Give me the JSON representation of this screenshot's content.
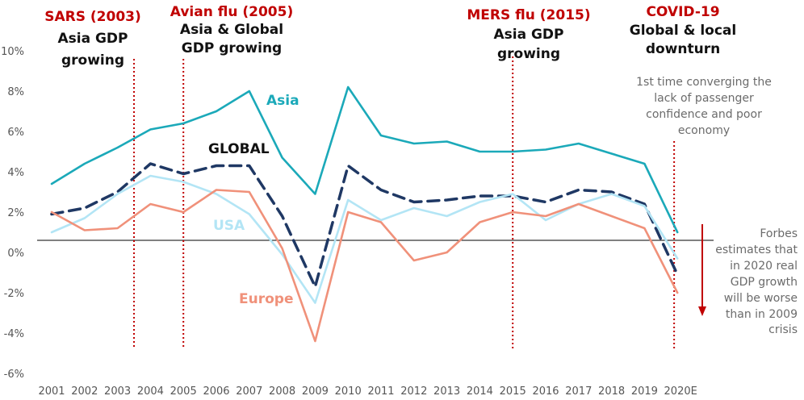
{
  "chart_data": {
    "type": "line",
    "categories": [
      "2001",
      "2002",
      "2003",
      "2004",
      "2005",
      "2006",
      "2007",
      "2008",
      "2009",
      "2010",
      "2011",
      "2012",
      "2013",
      "2014",
      "2015",
      "2016",
      "2017",
      "2018",
      "2019",
      "2020E"
    ],
    "ylim": [
      -6,
      10
    ],
    "yticks": [
      -6,
      -4,
      -2,
      0,
      2,
      4,
      6,
      8,
      10
    ],
    "ytick_labels": [
      "-6%",
      "-4%",
      "-2%",
      "0%",
      "2%",
      "4%",
      "6%",
      "8%",
      "10%"
    ],
    "reference_line_value": 0.6,
    "series": [
      {
        "name": "Asia",
        "color": "#1ba9b9",
        "dash": "solid",
        "values": [
          3.4,
          4.4,
          5.2,
          6.1,
          6.4,
          7.0,
          8.0,
          4.7,
          2.9,
          8.2,
          5.8,
          5.4,
          5.5,
          5.0,
          5.0,
          5.1,
          5.4,
          4.9,
          4.4,
          1.0
        ]
      },
      {
        "name": "GLOBAL",
        "color": "#1f3864",
        "dash": "dashed",
        "values": [
          1.9,
          2.2,
          3.0,
          4.4,
          3.9,
          4.3,
          4.3,
          1.8,
          -1.7,
          4.3,
          3.1,
          2.5,
          2.6,
          2.8,
          2.8,
          2.5,
          3.1,
          3.0,
          2.4,
          -1.1
        ]
      },
      {
        "name": "USA",
        "color": "#b3e5f5",
        "dash": "solid",
        "values": [
          1.0,
          1.7,
          2.9,
          3.8,
          3.5,
          2.9,
          1.9,
          -0.1,
          -2.5,
          2.6,
          1.6,
          2.2,
          1.8,
          2.5,
          2.9,
          1.6,
          2.4,
          2.9,
          2.3,
          -0.3
        ]
      },
      {
        "name": "Europe",
        "color": "#f0917a",
        "dash": "solid",
        "values": [
          2.0,
          1.1,
          1.2,
          2.4,
          2.0,
          3.1,
          3.0,
          0.2,
          -4.4,
          2.0,
          1.5,
          -0.4,
          0.0,
          1.5,
          2.0,
          1.8,
          2.4,
          1.8,
          1.2,
          -2.0
        ]
      }
    ],
    "events": [
      {
        "title": "SARS (2003)",
        "subtitle": [
          "Asia GDP",
          "growing"
        ],
        "at": "2003.5"
      },
      {
        "title": "Avian flu (2005)",
        "subtitle": [
          "Asia & Global",
          "GDP growing"
        ],
        "at": "2005"
      },
      {
        "title": "MERS flu (2015)",
        "subtitle": [
          "Asia GDP",
          "growing"
        ],
        "at": "2015"
      },
      {
        "title": "COVID-19",
        "subtitle": [
          "Global & local",
          "downturn"
        ],
        "at": "2020E"
      }
    ],
    "notes": {
      "converging": [
        "1st time converging the",
        "lack of passenger",
        "confidence and poor",
        "economy"
      ],
      "forbes": [
        "Forbes",
        "estimates that",
        "in 2020 real",
        "GDP growth",
        "will be worse",
        "than in 2009",
        "crisis"
      ]
    },
    "colors": {
      "event_red": "#c00000",
      "arrow_red": "#c00000",
      "ref_line": "#000000"
    }
  }
}
